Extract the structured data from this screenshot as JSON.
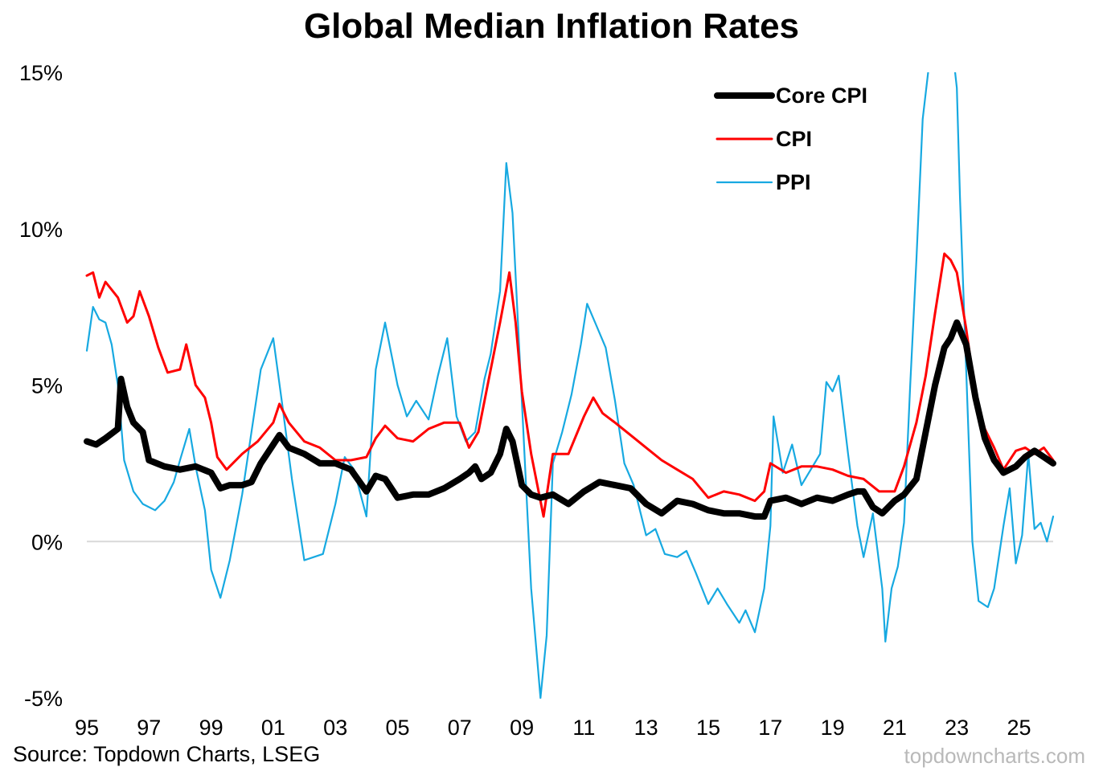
{
  "chart_data": {
    "type": "line",
    "title": "Global Median Inflation Rates",
    "xlabel": "",
    "ylabel": "",
    "ylim": [
      -5,
      15
    ],
    "xlim": [
      1995,
      2026.1
    ],
    "y_ticks": [
      15,
      10,
      5,
      0,
      -5
    ],
    "y_tick_labels": [
      "15%",
      "10%",
      "5%",
      "0%",
      "-5%"
    ],
    "x_ticks": [
      1995,
      1997,
      1999,
      2001,
      2003,
      2005,
      2007,
      2009,
      2011,
      2013,
      2015,
      2017,
      2019,
      2021,
      2023,
      2025
    ],
    "x_tick_labels": [
      "95",
      "97",
      "99",
      "01",
      "03",
      "05",
      "07",
      "09",
      "11",
      "13",
      "15",
      "17",
      "19",
      "21",
      "23",
      "25"
    ],
    "grid": false,
    "zero_line": true,
    "legend": {
      "position": "top-right"
    },
    "series": [
      {
        "name": "Core CPI",
        "color": "#000000",
        "points": [
          [
            1995.0,
            3.2
          ],
          [
            1995.3,
            3.1
          ],
          [
            1995.6,
            3.3
          ],
          [
            1996.0,
            3.6
          ],
          [
            1996.1,
            5.2
          ],
          [
            1996.3,
            4.3
          ],
          [
            1996.5,
            3.8
          ],
          [
            1996.8,
            3.5
          ],
          [
            1997.0,
            2.6
          ],
          [
            1997.5,
            2.4
          ],
          [
            1998.0,
            2.3
          ],
          [
            1998.5,
            2.4
          ],
          [
            1999.0,
            2.2
          ],
          [
            1999.3,
            1.7
          ],
          [
            1999.6,
            1.8
          ],
          [
            2000.0,
            1.8
          ],
          [
            2000.3,
            1.9
          ],
          [
            2000.6,
            2.5
          ],
          [
            2001.0,
            3.1
          ],
          [
            2001.2,
            3.4
          ],
          [
            2001.5,
            3.0
          ],
          [
            2002.0,
            2.8
          ],
          [
            2002.5,
            2.5
          ],
          [
            2003.0,
            2.5
          ],
          [
            2003.5,
            2.3
          ],
          [
            2004.0,
            1.6
          ],
          [
            2004.3,
            2.1
          ],
          [
            2004.6,
            2.0
          ],
          [
            2005.0,
            1.4
          ],
          [
            2005.5,
            1.5
          ],
          [
            2006.0,
            1.5
          ],
          [
            2006.5,
            1.7
          ],
          [
            2007.0,
            2.0
          ],
          [
            2007.3,
            2.2
          ],
          [
            2007.5,
            2.4
          ],
          [
            2007.7,
            2.0
          ],
          [
            2008.0,
            2.2
          ],
          [
            2008.3,
            2.8
          ],
          [
            2008.5,
            3.6
          ],
          [
            2008.7,
            3.2
          ],
          [
            2009.0,
            1.8
          ],
          [
            2009.3,
            1.5
          ],
          [
            2009.6,
            1.4
          ],
          [
            2010.0,
            1.5
          ],
          [
            2010.5,
            1.2
          ],
          [
            2011.0,
            1.6
          ],
          [
            2011.5,
            1.9
          ],
          [
            2012.0,
            1.8
          ],
          [
            2012.5,
            1.7
          ],
          [
            2013.0,
            1.2
          ],
          [
            2013.5,
            0.9
          ],
          [
            2014.0,
            1.3
          ],
          [
            2014.5,
            1.2
          ],
          [
            2015.0,
            1.0
          ],
          [
            2015.5,
            0.9
          ],
          [
            2016.0,
            0.9
          ],
          [
            2016.5,
            0.8
          ],
          [
            2016.8,
            0.8
          ],
          [
            2017.0,
            1.3
          ],
          [
            2017.5,
            1.4
          ],
          [
            2018.0,
            1.2
          ],
          [
            2018.5,
            1.4
          ],
          [
            2019.0,
            1.3
          ],
          [
            2019.5,
            1.5
          ],
          [
            2019.8,
            1.6
          ],
          [
            2020.0,
            1.6
          ],
          [
            2020.3,
            1.1
          ],
          [
            2020.6,
            0.9
          ],
          [
            2021.0,
            1.3
          ],
          [
            2021.3,
            1.5
          ],
          [
            2021.7,
            2.0
          ],
          [
            2022.0,
            3.5
          ],
          [
            2022.3,
            5.0
          ],
          [
            2022.6,
            6.2
          ],
          [
            2022.8,
            6.5
          ],
          [
            2023.0,
            7.0
          ],
          [
            2023.3,
            6.3
          ],
          [
            2023.6,
            4.6
          ],
          [
            2023.9,
            3.3
          ],
          [
            2024.2,
            2.6
          ],
          [
            2024.5,
            2.2
          ],
          [
            2024.9,
            2.4
          ],
          [
            2025.2,
            2.7
          ],
          [
            2025.5,
            2.9
          ],
          [
            2025.8,
            2.7
          ],
          [
            2026.1,
            2.5
          ]
        ]
      },
      {
        "name": "CPI",
        "color": "#ff0000",
        "points": [
          [
            1995.0,
            8.5
          ],
          [
            1995.2,
            8.6
          ],
          [
            1995.4,
            7.8
          ],
          [
            1995.6,
            8.3
          ],
          [
            1996.0,
            7.8
          ],
          [
            1996.3,
            7.0
          ],
          [
            1996.5,
            7.2
          ],
          [
            1996.7,
            8.0
          ],
          [
            1997.0,
            7.2
          ],
          [
            1997.3,
            6.2
          ],
          [
            1997.6,
            5.4
          ],
          [
            1998.0,
            5.5
          ],
          [
            1998.2,
            6.3
          ],
          [
            1998.5,
            5.0
          ],
          [
            1998.8,
            4.6
          ],
          [
            1999.0,
            3.8
          ],
          [
            1999.2,
            2.7
          ],
          [
            1999.5,
            2.3
          ],
          [
            2000.0,
            2.8
          ],
          [
            2000.5,
            3.2
          ],
          [
            2001.0,
            3.8
          ],
          [
            2001.2,
            4.4
          ],
          [
            2001.5,
            3.8
          ],
          [
            2002.0,
            3.2
          ],
          [
            2002.5,
            3.0
          ],
          [
            2003.0,
            2.6
          ],
          [
            2003.5,
            2.6
          ],
          [
            2004.0,
            2.7
          ],
          [
            2004.3,
            3.3
          ],
          [
            2004.6,
            3.7
          ],
          [
            2005.0,
            3.3
          ],
          [
            2005.5,
            3.2
          ],
          [
            2006.0,
            3.6
          ],
          [
            2006.5,
            3.8
          ],
          [
            2007.0,
            3.8
          ],
          [
            2007.3,
            3.0
          ],
          [
            2007.6,
            3.5
          ],
          [
            2008.0,
            5.5
          ],
          [
            2008.3,
            7.0
          ],
          [
            2008.6,
            8.6
          ],
          [
            2008.8,
            7.0
          ],
          [
            2009.0,
            4.8
          ],
          [
            2009.3,
            2.8
          ],
          [
            2009.7,
            0.8
          ],
          [
            2010.0,
            2.8
          ],
          [
            2010.5,
            2.8
          ],
          [
            2011.0,
            4.0
          ],
          [
            2011.3,
            4.6
          ],
          [
            2011.6,
            4.1
          ],
          [
            2012.0,
            3.8
          ],
          [
            2012.5,
            3.4
          ],
          [
            2013.0,
            3.0
          ],
          [
            2013.5,
            2.6
          ],
          [
            2014.0,
            2.3
          ],
          [
            2014.5,
            2.0
          ],
          [
            2015.0,
            1.4
          ],
          [
            2015.5,
            1.6
          ],
          [
            2016.0,
            1.5
          ],
          [
            2016.5,
            1.3
          ],
          [
            2016.8,
            1.6
          ],
          [
            2017.0,
            2.5
          ],
          [
            2017.5,
            2.2
          ],
          [
            2018.0,
            2.4
          ],
          [
            2018.5,
            2.4
          ],
          [
            2019.0,
            2.3
          ],
          [
            2019.5,
            2.1
          ],
          [
            2020.0,
            2.0
          ],
          [
            2020.5,
            1.6
          ],
          [
            2021.0,
            1.6
          ],
          [
            2021.3,
            2.4
          ],
          [
            2021.7,
            3.8
          ],
          [
            2022.0,
            5.3
          ],
          [
            2022.3,
            7.3
          ],
          [
            2022.6,
            9.2
          ],
          [
            2022.8,
            9.0
          ],
          [
            2023.0,
            8.6
          ],
          [
            2023.3,
            6.8
          ],
          [
            2023.6,
            4.7
          ],
          [
            2023.9,
            3.6
          ],
          [
            2024.2,
            3.0
          ],
          [
            2024.5,
            2.3
          ],
          [
            2024.9,
            2.9
          ],
          [
            2025.2,
            3.0
          ],
          [
            2025.5,
            2.8
          ],
          [
            2025.8,
            3.0
          ],
          [
            2026.1,
            2.6
          ]
        ]
      },
      {
        "name": "PPI",
        "color": "#17a9e1",
        "points": [
          [
            1995.0,
            6.1
          ],
          [
            1995.2,
            7.5
          ],
          [
            1995.4,
            7.1
          ],
          [
            1995.6,
            7.0
          ],
          [
            1995.8,
            6.3
          ],
          [
            1996.0,
            5.0
          ],
          [
            1996.2,
            2.6
          ],
          [
            1996.5,
            1.6
          ],
          [
            1996.8,
            1.2
          ],
          [
            1997.2,
            1.0
          ],
          [
            1997.5,
            1.3
          ],
          [
            1997.8,
            1.9
          ],
          [
            1998.0,
            2.6
          ],
          [
            1998.3,
            3.6
          ],
          [
            1998.5,
            2.4
          ],
          [
            1998.8,
            1.0
          ],
          [
            1999.0,
            -0.9
          ],
          [
            1999.3,
            -1.8
          ],
          [
            1999.6,
            -0.6
          ],
          [
            2000.0,
            1.5
          ],
          [
            2000.3,
            3.5
          ],
          [
            2000.6,
            5.5
          ],
          [
            2001.0,
            6.5
          ],
          [
            2001.3,
            4.3
          ],
          [
            2001.6,
            2.0
          ],
          [
            2002.0,
            -0.6
          ],
          [
            2002.3,
            -0.5
          ],
          [
            2002.6,
            -0.4
          ],
          [
            2003.0,
            1.2
          ],
          [
            2003.3,
            2.7
          ],
          [
            2003.6,
            2.3
          ],
          [
            2004.0,
            0.8
          ],
          [
            2004.3,
            5.5
          ],
          [
            2004.6,
            7.0
          ],
          [
            2005.0,
            5.0
          ],
          [
            2005.3,
            4.0
          ],
          [
            2005.6,
            4.5
          ],
          [
            2006.0,
            3.9
          ],
          [
            2006.3,
            5.3
          ],
          [
            2006.6,
            6.5
          ],
          [
            2006.9,
            4.0
          ],
          [
            2007.2,
            3.2
          ],
          [
            2007.5,
            3.5
          ],
          [
            2007.8,
            5.2
          ],
          [
            2008.0,
            6.0
          ],
          [
            2008.3,
            8.0
          ],
          [
            2008.5,
            12.1
          ],
          [
            2008.7,
            10.5
          ],
          [
            2009.0,
            4.5
          ],
          [
            2009.3,
            -1.5
          ],
          [
            2009.6,
            -5.0
          ],
          [
            2009.8,
            -3.0
          ],
          [
            2010.0,
            2.5
          ],
          [
            2010.3,
            3.5
          ],
          [
            2010.6,
            4.7
          ],
          [
            2010.9,
            6.3
          ],
          [
            2011.1,
            7.6
          ],
          [
            2011.4,
            6.9
          ],
          [
            2011.7,
            6.2
          ],
          [
            2012.0,
            4.5
          ],
          [
            2012.3,
            2.5
          ],
          [
            2012.6,
            1.8
          ],
          [
            2013.0,
            0.2
          ],
          [
            2013.3,
            0.4
          ],
          [
            2013.6,
            -0.4
          ],
          [
            2014.0,
            -0.5
          ],
          [
            2014.3,
            -0.3
          ],
          [
            2014.6,
            -1.0
          ],
          [
            2015.0,
            -2.0
          ],
          [
            2015.3,
            -1.5
          ],
          [
            2015.6,
            -2.0
          ],
          [
            2016.0,
            -2.6
          ],
          [
            2016.2,
            -2.2
          ],
          [
            2016.5,
            -2.9
          ],
          [
            2016.8,
            -1.5
          ],
          [
            2017.0,
            0.5
          ],
          [
            2017.1,
            4.0
          ],
          [
            2017.4,
            2.2
          ],
          [
            2017.7,
            3.1
          ],
          [
            2018.0,
            1.8
          ],
          [
            2018.3,
            2.3
          ],
          [
            2018.6,
            2.8
          ],
          [
            2018.8,
            5.1
          ],
          [
            2019.0,
            4.8
          ],
          [
            2019.2,
            5.3
          ],
          [
            2019.5,
            2.8
          ],
          [
            2019.8,
            0.5
          ],
          [
            2020.0,
            -0.5
          ],
          [
            2020.3,
            0.9
          ],
          [
            2020.6,
            -1.5
          ],
          [
            2020.7,
            -3.2
          ],
          [
            2020.9,
            -1.5
          ],
          [
            2021.1,
            -0.8
          ],
          [
            2021.3,
            0.6
          ],
          [
            2021.5,
            5.0
          ],
          [
            2021.7,
            9.0
          ],
          [
            2021.9,
            13.5
          ],
          [
            2022.1,
            15.2
          ],
          [
            2022.4,
            15.5
          ],
          [
            2022.7,
            15.6
          ],
          [
            2022.9,
            15.4
          ],
          [
            2023.0,
            14.5
          ],
          [
            2023.1,
            11.0
          ],
          [
            2023.3,
            5.5
          ],
          [
            2023.5,
            0.0
          ],
          [
            2023.7,
            -1.9
          ],
          [
            2024.0,
            -2.1
          ],
          [
            2024.2,
            -1.5
          ],
          [
            2024.5,
            0.5
          ],
          [
            2024.7,
            1.7
          ],
          [
            2024.9,
            -0.7
          ],
          [
            2025.1,
            0.2
          ],
          [
            2025.3,
            2.8
          ],
          [
            2025.5,
            0.4
          ],
          [
            2025.7,
            0.6
          ],
          [
            2025.9,
            0.0
          ],
          [
            2026.1,
            0.8
          ]
        ]
      }
    ]
  },
  "source": "Source: Topdown Charts, LSEG",
  "watermark": "topdowncharts.com"
}
